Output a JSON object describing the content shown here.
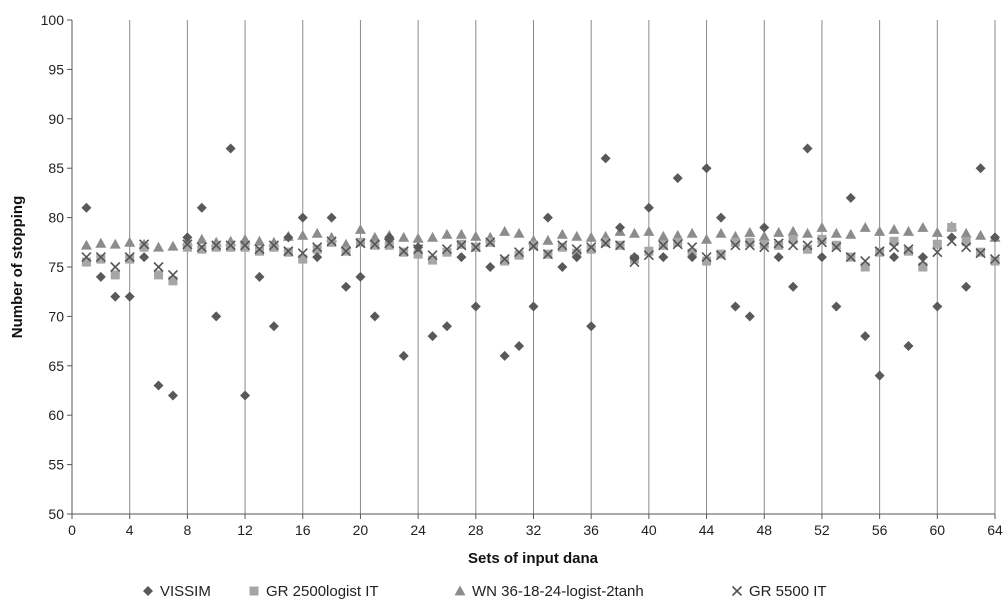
{
  "chart_data": {
    "type": "scatter",
    "title": "",
    "xlabel": "Sets of input dana",
    "ylabel": "Number of stopping",
    "xlim": [
      0,
      64
    ],
    "ylim": [
      50,
      100
    ],
    "x_ticks": [
      "0",
      "4",
      "8",
      "12",
      "16",
      "20",
      "24",
      "28",
      "32",
      "36",
      "40",
      "44",
      "48",
      "52",
      "56",
      "60",
      "64"
    ],
    "y_ticks": [
      "50",
      "55",
      "60",
      "65",
      "70",
      "75",
      "80",
      "85",
      "90",
      "95",
      "100"
    ],
    "grid": "vertical",
    "legend_position": "bottom",
    "series": [
      {
        "name": "VISSIM",
        "marker": "diamond",
        "color": "#595959",
        "values": [
          81,
          74,
          72,
          72,
          76,
          63,
          62,
          78,
          81,
          70,
          87,
          62,
          74,
          69,
          78,
          80,
          76,
          80,
          73,
          74,
          70,
          78,
          66,
          77,
          68,
          69,
          76,
          71,
          75,
          66,
          67,
          71,
          80,
          75,
          76,
          69,
          86,
          79,
          76,
          81,
          76,
          84,
          76,
          85,
          80,
          71,
          70,
          79,
          76,
          73,
          87,
          76,
          71,
          82,
          68,
          64,
          76,
          67,
          76,
          71,
          78,
          73,
          85,
          78
        ]
      },
      {
        "name": "GR 2500logist IT",
        "marker": "square",
        "color": "#a6a6a6",
        "values": [
          75.5,
          75.8,
          74.2,
          75.8,
          77,
          74.2,
          73.6,
          77,
          76.8,
          77,
          77,
          77,
          76.6,
          77,
          76.5,
          75.8,
          76.8,
          77.5,
          76.6,
          77.5,
          77.2,
          77.2,
          76.5,
          76.3,
          75.7,
          76.5,
          77.3,
          77,
          77.5,
          75.6,
          76.2,
          77.2,
          76.3,
          77,
          76.4,
          76.8,
          77.5,
          77.2,
          75.8,
          76.6,
          77.2,
          77.5,
          76.4,
          75.6,
          76.3,
          77.5,
          77.5,
          77.3,
          77.2,
          77.8,
          76.8,
          77.8,
          77.2,
          76,
          75,
          76.5,
          77.6,
          76.6,
          75,
          77.3,
          79,
          77.6,
          76.5,
          75.6
        ]
      },
      {
        "name": "WN 36-18-24-logist-2tanh",
        "marker": "triangle",
        "color": "#8c8c8c",
        "values": [
          77.2,
          77.4,
          77.3,
          77.5,
          77.3,
          77,
          77.1,
          77.6,
          77.8,
          77.5,
          77.6,
          77.8,
          77.6,
          77.5,
          78.1,
          78.2,
          78.4,
          78,
          77.3,
          78.8,
          78,
          78.2,
          78,
          77.9,
          78,
          78.3,
          78.3,
          78.1,
          78,
          78.6,
          78.4,
          77.7,
          77.7,
          78.3,
          78.1,
          78,
          78.1,
          78.6,
          78.4,
          78.6,
          78.1,
          78.2,
          78.4,
          77.8,
          78.4,
          78.1,
          78.5,
          78.1,
          78.5,
          78.6,
          78.4,
          79,
          78.4,
          78.3,
          79,
          78.6,
          78.8,
          78.6,
          79,
          78.5,
          79.1,
          78.4,
          78.2,
          78
        ]
      },
      {
        "name": "GR 5500 IT",
        "marker": "cross",
        "color": "#555555",
        "values": [
          76,
          76,
          75,
          76,
          77.3,
          75,
          74.2,
          77.3,
          77,
          77.2,
          77.2,
          77.2,
          76.8,
          77.2,
          76.6,
          76.4,
          77,
          77.6,
          76.6,
          77.4,
          77.3,
          77.4,
          76.6,
          76.8,
          76.2,
          76.8,
          77.2,
          77,
          77.5,
          75.8,
          76.5,
          77.1,
          76.3,
          77.2,
          76.8,
          77,
          77.4,
          77.2,
          75.5,
          76.2,
          77.2,
          77.3,
          77,
          76,
          76.2,
          77.2,
          77.2,
          77,
          77.4,
          77.2,
          77.2,
          77.5,
          77,
          76,
          75.6,
          76.6,
          77,
          76.8,
          75.6,
          76.5,
          77.6,
          77,
          76.4,
          75.8
        ]
      }
    ]
  }
}
